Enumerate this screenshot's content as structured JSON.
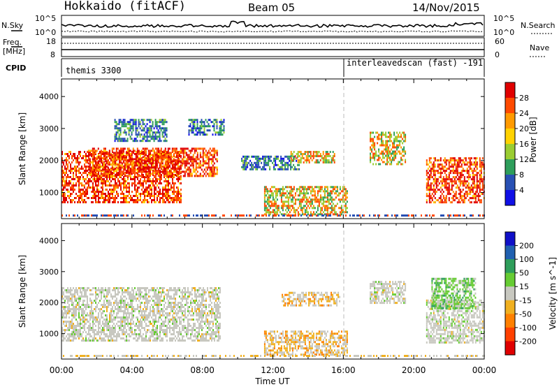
{
  "header": {
    "title": "Hokkaido (fitACF)",
    "beam": "Beam 05",
    "date": "14/Nov/2015"
  },
  "top_panels": {
    "nsky_label": "N.Sky",
    "nsearch_label": "N.Search",
    "freq_label": "Freq.",
    "freq_unit": "[MHz]",
    "nave_label": "Nave",
    "cpid_label": "CPID",
    "noise_ticks_left": [
      "10^5",
      "10^0"
    ],
    "noise_ticks_right": [
      "10^5",
      "10^0"
    ],
    "freq_ticks": [
      "18",
      "8"
    ],
    "nave_ticks": [
      "60",
      "0"
    ],
    "cpid_segments": [
      {
        "label": "themis 3300",
        "start_hour": 0,
        "end_hour": 16
      },
      {
        "label": "interleavedscan (fast) -191",
        "start_hour": 16,
        "end_hour": 24
      }
    ]
  },
  "chart_data": [
    {
      "type": "heatmap",
      "name": "power-panel",
      "ylabel": "Slant Range [km]",
      "xlabel": "",
      "xlim_hours": [
        0,
        24
      ],
      "ylim": [
        180,
        4550
      ],
      "yticks": [
        1000,
        2000,
        3000,
        4000
      ],
      "colorbar": {
        "label": "Power [dB]",
        "ticks": [
          "28",
          "24",
          "20",
          "16",
          "12",
          "8",
          "4"
        ],
        "colors": [
          "#e00000",
          "#ff4a00",
          "#ff9a00",
          "#ffd200",
          "#9acd32",
          "#2e9e5b",
          "#2850b4",
          "#1010e6"
        ]
      },
      "echo_regions": [
        {
          "t0": 0.0,
          "t1": 6.8,
          "r0": 700,
          "r1": 2300,
          "value": "high"
        },
        {
          "t0": 1.5,
          "t1": 8.8,
          "r0": 1500,
          "r1": 2400,
          "value": "high"
        },
        {
          "t0": 3.0,
          "t1": 6.0,
          "r0": 2600,
          "r1": 3300,
          "value": "low"
        },
        {
          "t0": 10.2,
          "t1": 13.5,
          "r0": 1700,
          "r1": 2150,
          "value": "low"
        },
        {
          "t0": 13.0,
          "t1": 15.5,
          "r0": 1950,
          "r1": 2300,
          "value": "mid"
        },
        {
          "t0": 11.5,
          "t1": 16.2,
          "r0": 300,
          "r1": 1200,
          "value": "mid"
        },
        {
          "t0": 17.5,
          "t1": 19.5,
          "r0": 1900,
          "r1": 2900,
          "value": "mid"
        },
        {
          "t0": 20.7,
          "t1": 24.0,
          "r0": 700,
          "r1": 2100,
          "value": "high"
        },
        {
          "t0": 7.2,
          "t1": 9.2,
          "r0": 2800,
          "r1": 3300,
          "value": "low"
        }
      ]
    },
    {
      "type": "heatmap",
      "name": "velocity-panel",
      "ylabel": "Slant Range [km]",
      "xlabel": "Time UT",
      "xlim_hours": [
        0,
        24
      ],
      "ylim": [
        180,
        4550
      ],
      "yticks": [
        1000,
        2000,
        3000,
        4000
      ],
      "colorbar": {
        "label": "Velocity [m s^-1]",
        "ticks": [
          "200",
          "100",
          "50",
          "15",
          "-15",
          "-50",
          "-100",
          "-200"
        ],
        "colors": [
          "#1010c8",
          "#2060b0",
          "#2e9e5b",
          "#66cc33",
          "#c8c8c0",
          "#f0b020",
          "#ff8000",
          "#ff4000",
          "#e00000"
        ]
      },
      "echo_regions": [
        {
          "t0": 0.0,
          "t1": 9.0,
          "r0": 800,
          "r1": 2500,
          "value": "ground"
        },
        {
          "t0": 11.5,
          "t1": 16.2,
          "r0": 300,
          "r1": 1100,
          "value": "negative"
        },
        {
          "t0": 12.5,
          "t1": 15.8,
          "r0": 1900,
          "r1": 2350,
          "value": "negative"
        },
        {
          "t0": 17.5,
          "t1": 19.5,
          "r0": 2000,
          "r1": 2700,
          "value": "ground"
        },
        {
          "t0": 20.7,
          "t1": 24.0,
          "r0": 700,
          "r1": 2100,
          "value": "ground"
        },
        {
          "t0": 21.0,
          "t1": 23.5,
          "r0": 1800,
          "r1": 2800,
          "value": "positive"
        }
      ]
    }
  ],
  "x_axis": {
    "tick_labels": [
      "00:00",
      "04:00",
      "08:00",
      "12:00",
      "16:00",
      "20:00",
      "00:00"
    ],
    "title": "Time UT"
  }
}
